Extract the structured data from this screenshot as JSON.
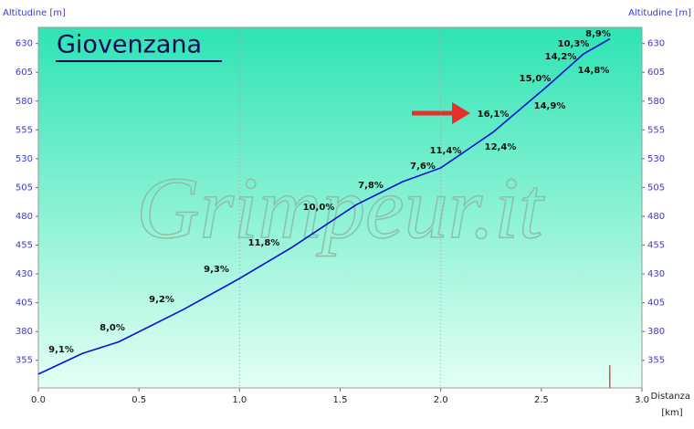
{
  "chart_data": {
    "type": "line",
    "title": "Giovenzana",
    "watermark": "Grimpeur.it",
    "y_label": "Altitudine [m]",
    "y2_label": "Altitudine [m]",
    "x_label": "Distanza",
    "x_unit": "[km]",
    "x": [
      0,
      0.22,
      0.4,
      0.72,
      1.0,
      1.26,
      1.58,
      1.81,
      2.0,
      2.26,
      2.53,
      2.71,
      2.84
    ],
    "series": [
      {
        "name": "Altitudine",
        "color": "#0a10d0",
        "values": [
          343,
          361,
          371,
          399,
          426,
          453,
          490,
          510,
          522,
          553,
          593,
          621,
          634
        ]
      }
    ],
    "annotations": [
      "9,1%",
      "8,0%",
      "9,2%",
      "9,3%",
      "11,8%",
      "10,0%",
      "7,8%",
      "7,6%",
      "11,4%",
      "12,4%",
      "16,1%",
      "14,9%",
      "15,0%",
      "14,8%",
      "14,2%",
      "10,3%",
      "8,9%"
    ],
    "xlim": [
      0,
      3.0
    ],
    "ylim": [
      331,
      644
    ],
    "xticks": [
      {
        "value": 0,
        "label": "0.0"
      },
      0.5,
      {
        "value": 1,
        "label": "1.0"
      },
      1.5,
      {
        "value": 2,
        "label": "2.0"
      },
      2.5,
      {
        "value": 3,
        "label": "3.0"
      }
    ],
    "yticks": [
      355,
      380,
      405,
      430,
      455,
      480,
      505,
      530,
      555,
      580,
      605,
      630
    ],
    "grid": true
  }
}
